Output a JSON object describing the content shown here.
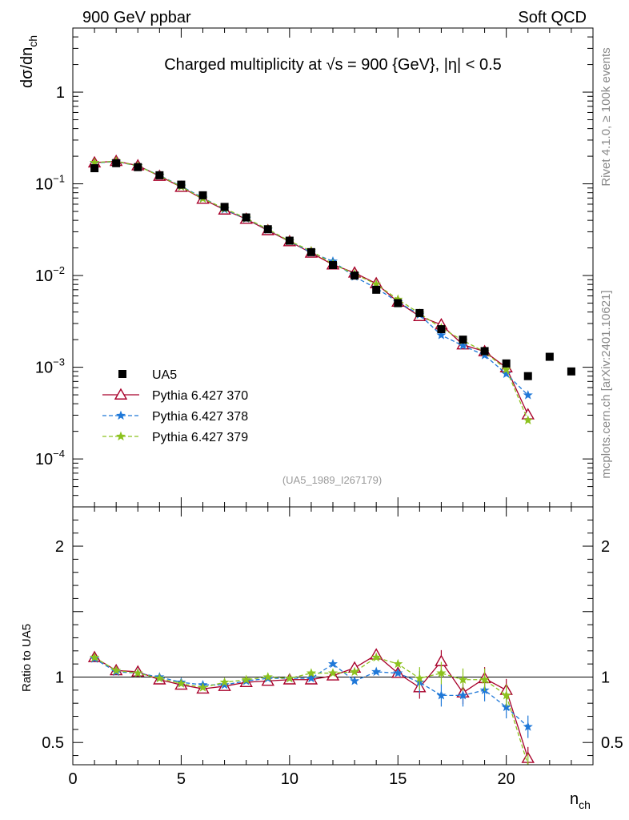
{
  "header": {
    "left": "900 GeV ppbar",
    "right": "Soft QCD",
    "title_prefix": "Charged multiplicity at ",
    "title_sqrt": "√s",
    "title_suffix": " = 900 {GeV}, |η| < 0.5",
    "watermark": "(UA5_1989_I267179)",
    "side_top": "Rivet 4.1.0, ≥ 100k events",
    "side_bottom": "mcplots.cern.ch [arXiv:2401.10621]"
  },
  "axes": {
    "ylabel_main": "dσ/dn",
    "ylabel_main_sub": "ch",
    "ylabel_ratio": "Ratio to UA5",
    "xlabel": "n",
    "xlabel_sub": "ch"
  },
  "chart_data": {
    "type": "scatter",
    "title": "Charged multiplicity at √s = 900 {GeV}, |η| < 0.5",
    "xlim": [
      0,
      24
    ],
    "main": {
      "yscale": "log",
      "ylim": [
        3e-05,
        5
      ],
      "yticks": [
        {
          "value": 0.0001,
          "base": "10",
          "exp": "−4"
        },
        {
          "value": 0.001,
          "base": "10",
          "exp": "−3"
        },
        {
          "value": 0.01,
          "base": "10",
          "exp": "−2"
        },
        {
          "value": 0.1,
          "base": "10",
          "exp": "−1"
        },
        {
          "value": 1,
          "base": "1",
          "exp": ""
        }
      ]
    },
    "ratio": {
      "ylim": [
        0.33,
        2.3
      ],
      "yticks": [
        {
          "value": 0.5,
          "label": "0.5"
        },
        {
          "value": 1,
          "label": "1"
        },
        {
          "value": 2,
          "label": "2"
        }
      ]
    },
    "xticks": [
      {
        "value": 0,
        "label": "0"
      },
      {
        "value": 5,
        "label": "5"
      },
      {
        "value": 10,
        "label": "10"
      },
      {
        "value": 15,
        "label": "15"
      },
      {
        "value": 20,
        "label": "20"
      }
    ],
    "legend_position": "lower-left",
    "data": {
      "name": "UA5",
      "color": "#000000",
      "x": [
        1,
        2,
        3,
        4,
        5,
        6,
        7,
        8,
        9,
        10,
        11,
        12,
        13,
        14,
        15,
        16,
        17,
        18,
        19,
        20,
        21,
        22,
        23
      ],
      "y": [
        0.148,
        0.168,
        0.152,
        0.124,
        0.098,
        0.075,
        0.056,
        0.043,
        0.032,
        0.024,
        0.018,
        0.013,
        0.01,
        0.007,
        0.005,
        0.0039,
        0.0026,
        0.002,
        0.0015,
        0.0011,
        0.0008,
        0.0013,
        0.0009
      ]
    },
    "series": [
      {
        "name": "Pythia 6.427 370",
        "color": "#a8002a",
        "dash": "",
        "marker": "triangle",
        "x": [
          1,
          2,
          3,
          4,
          5,
          6,
          7,
          8,
          9,
          10,
          11,
          12,
          13,
          14,
          15,
          16,
          17,
          18,
          19,
          20,
          21
        ],
        "ratio": [
          1.15,
          1.05,
          1.04,
          0.98,
          0.94,
          0.91,
          0.93,
          0.96,
          0.97,
          0.98,
          0.98,
          1.01,
          1.07,
          1.17,
          1.03,
          0.92,
          1.12,
          0.88,
          0.99,
          0.9,
          0.38
        ]
      },
      {
        "name": "Pythia 6.427 378",
        "color": "#1f78d8",
        "dash": "5,3",
        "marker": "star",
        "x": [
          1,
          2,
          3,
          4,
          5,
          6,
          7,
          8,
          9,
          10,
          11,
          12,
          13,
          14,
          15,
          16,
          17,
          18,
          19,
          20,
          21
        ],
        "ratio": [
          1.14,
          1.04,
          1.03,
          1.0,
          0.96,
          0.94,
          0.94,
          0.97,
          0.99,
          0.99,
          0.99,
          1.1,
          0.97,
          1.04,
          1.03,
          0.96,
          0.86,
          0.86,
          0.9,
          0.77,
          0.62
        ]
      },
      {
        "name": "Pythia 6.427 379",
        "color": "#8cc21e",
        "dash": "5,3",
        "marker": "star",
        "x": [
          1,
          2,
          3,
          4,
          5,
          6,
          7,
          8,
          9,
          10,
          11,
          12,
          13,
          14,
          15,
          16,
          17,
          18,
          19,
          20,
          21
        ],
        "ratio": [
          1.15,
          1.05,
          1.03,
          0.99,
          0.95,
          0.92,
          0.96,
          0.98,
          1.0,
          0.99,
          1.03,
          1.03,
          1.04,
          1.15,
          1.1,
          0.99,
          1.03,
          0.98,
          0.98,
          0.86,
          0.33
        ]
      }
    ]
  }
}
